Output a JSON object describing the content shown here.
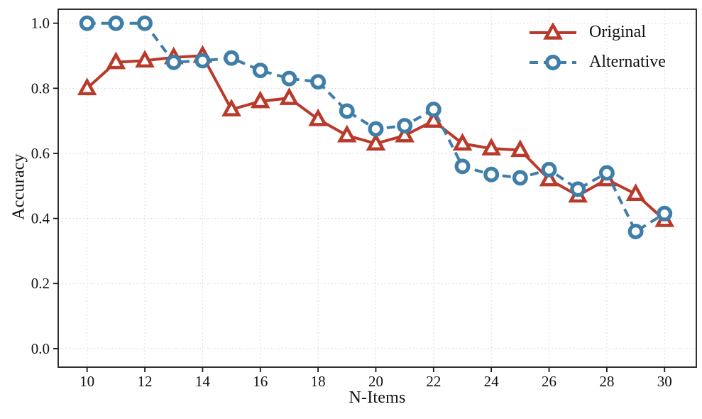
{
  "figure": {
    "background": "#ffffff",
    "spine_color": "#1a1a1a",
    "grid_color": "#dcdcdc"
  },
  "chart_data": {
    "type": "line",
    "title": "",
    "xlabel": "N-Items",
    "ylabel": "Accuracy",
    "xlim": [
      9,
      31.1
    ],
    "ylim": [
      -0.057,
      1.043
    ],
    "grid": true,
    "legend_position": "top-right",
    "xticks": {
      "values": [
        10,
        12,
        14,
        16,
        18,
        20,
        22,
        24,
        26,
        28,
        30
      ],
      "labels": [
        "10",
        "12",
        "14",
        "16",
        "18",
        "20",
        "22",
        "24",
        "26",
        "28",
        "30"
      ]
    },
    "yticks": {
      "values": [
        0.0,
        0.2,
        0.4,
        0.6,
        0.8,
        1.0
      ],
      "labels": [
        "0.0",
        "0.2",
        "0.4",
        "0.6",
        "0.8",
        "1.0"
      ]
    },
    "x": [
      10,
      11,
      12,
      13,
      14,
      15,
      16,
      17,
      18,
      19,
      20,
      21,
      22,
      23,
      24,
      25,
      26,
      27,
      28,
      29,
      30
    ],
    "series": [
      {
        "name": "Original",
        "color": "#b93a2b",
        "marker": "triangle",
        "line": "solid",
        "values": [
          0.8,
          0.88,
          0.885,
          0.895,
          0.9,
          0.735,
          0.76,
          0.77,
          0.705,
          0.655,
          0.63,
          0.655,
          0.7,
          0.63,
          0.615,
          0.61,
          0.52,
          0.47,
          0.52,
          0.475,
          0.395
        ]
      },
      {
        "name": "Alternative",
        "color": "#3f7ea8",
        "marker": "circle",
        "line": "dashed",
        "values": [
          1.0,
          1.0,
          1.0,
          0.88,
          0.885,
          0.893,
          0.855,
          0.83,
          0.82,
          0.73,
          0.675,
          0.685,
          0.735,
          0.56,
          0.535,
          0.525,
          0.55,
          0.49,
          0.54,
          0.36,
          0.415
        ]
      }
    ]
  }
}
